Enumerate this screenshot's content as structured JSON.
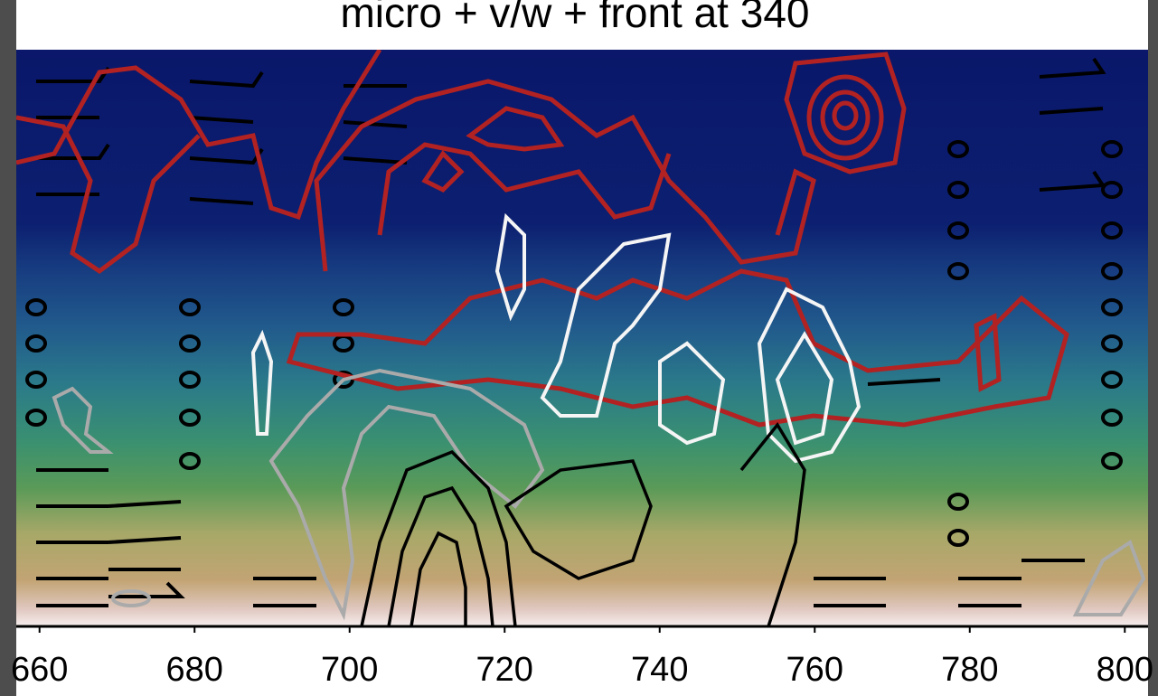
{
  "chart_data": {
    "type": "contour",
    "title": "micro + v/w + front at 340",
    "xlim": [
      657,
      803
    ],
    "xticks": [
      660,
      680,
      700,
      720,
      740,
      760,
      780,
      800
    ]
  }
}
